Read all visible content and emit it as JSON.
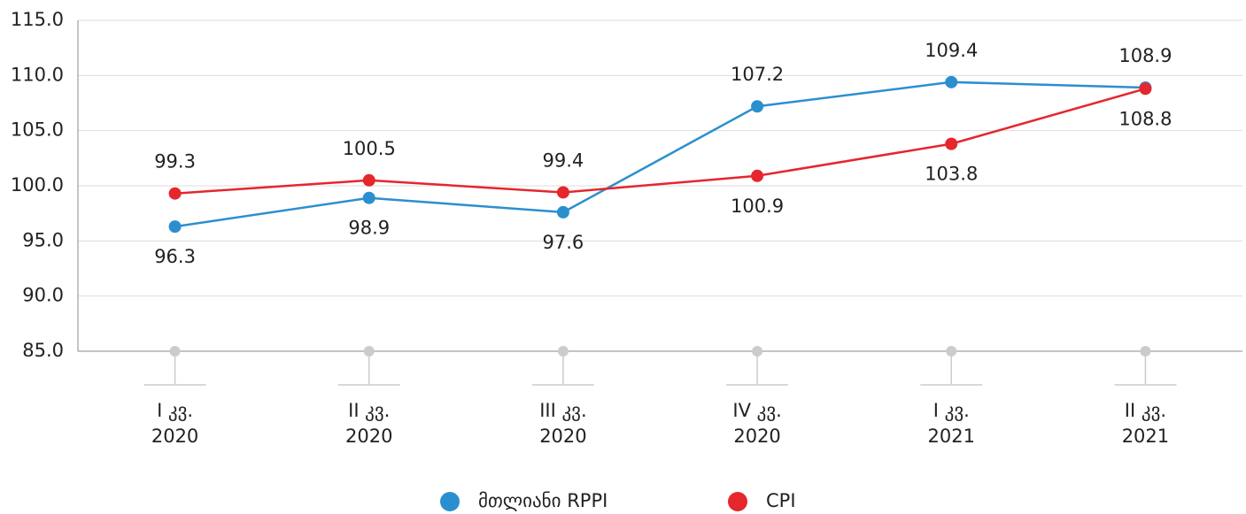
{
  "chart_data": {
    "type": "line",
    "categories": [
      [
        "I კვ.",
        "2020"
      ],
      [
        "II კვ.",
        "2020"
      ],
      [
        "III კვ.",
        "2020"
      ],
      [
        "IV კვ.",
        "2020"
      ],
      [
        "I კვ.",
        "2021"
      ],
      [
        "II კვ.",
        "2021"
      ]
    ],
    "series": [
      {
        "name": "მთლიანი RPPI",
        "color": "#2b8fcf",
        "values": [
          96.3,
          98.9,
          97.6,
          107.2,
          109.4,
          108.9
        ]
      },
      {
        "name": "CPI",
        "color": "#e5262d",
        "values": [
          99.3,
          100.5,
          99.4,
          100.9,
          103.8,
          108.8
        ]
      }
    ],
    "ylim": [
      85,
      115
    ],
    "yticks": [
      {
        "value": 85,
        "label": "85.0"
      },
      {
        "value": 90,
        "label": "90.0"
      },
      {
        "value": 95,
        "label": "95.0"
      },
      {
        "value": 100,
        "label": "100.0"
      },
      {
        "value": 105,
        "label": "105.0"
      },
      {
        "value": 110,
        "label": "110.0"
      },
      {
        "value": 115,
        "label": "115.0"
      }
    ],
    "grid": true
  }
}
